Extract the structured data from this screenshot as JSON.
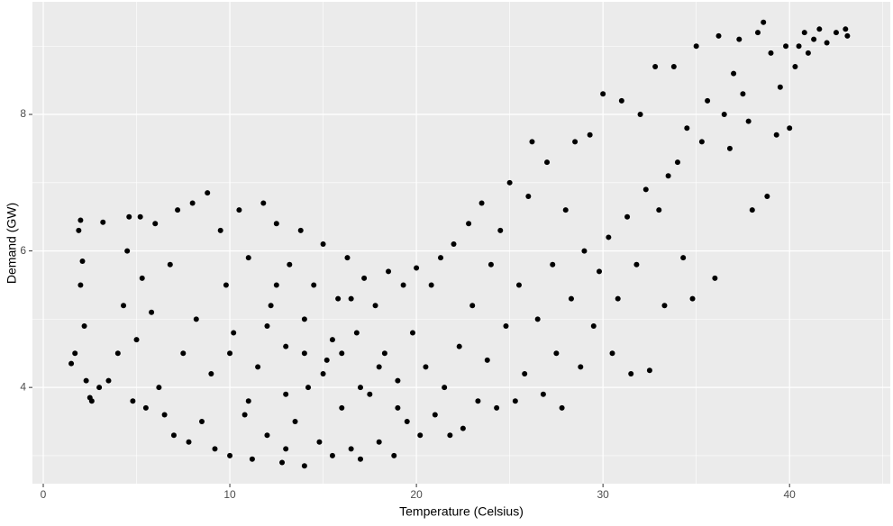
{
  "chart_data": {
    "type": "scatter",
    "x_label": "Temperature (Celsius)",
    "y_label": "Demand (GW)",
    "xlim": [
      -0.58,
      45.4
    ],
    "ylim": [
      2.59,
      9.65
    ],
    "xticks": [
      0,
      10,
      20,
      30,
      40
    ],
    "yticks": [
      4,
      6,
      8
    ],
    "grid": true,
    "color": "#000000",
    "series": [
      {
        "name": "Demand",
        "x": [
          1.5,
          1.7,
          1.9,
          2.0,
          2.1,
          2.0,
          2.2,
          2.3,
          2.5,
          2.6,
          3.0,
          3.2,
          3.5,
          4.0,
          4.3,
          4.5,
          4.6,
          4.8,
          5.0,
          5.2,
          5.3,
          5.5,
          5.8,
          6.0,
          6.2,
          6.5,
          6.8,
          7.0,
          7.2,
          7.5,
          7.8,
          8.0,
          8.2,
          8.5,
          8.8,
          9.0,
          9.2,
          9.5,
          9.8,
          10,
          10.2,
          10.5,
          10.8,
          11,
          11.2,
          11.5,
          11.8,
          12,
          12.2,
          12.5,
          12.8,
          13,
          13.2,
          13.5,
          13.8,
          14,
          14.2,
          14.5,
          14.8,
          15,
          15.2,
          15.5,
          15.8,
          16,
          16.3,
          16.5,
          16.8,
          17,
          17.2,
          17.5,
          17.8,
          18,
          18.3,
          18.5,
          18.8,
          19,
          19.3,
          19.5,
          19.8,
          20,
          20.2,
          20.5,
          20.8,
          21,
          21.3,
          21.5,
          21.8,
          22,
          22.3,
          22.5,
          22.8,
          23,
          23.3,
          23.5,
          23.8,
          24,
          24.3,
          24.5,
          24.8,
          25,
          25.3,
          25.5,
          25.8,
          26,
          26.2,
          26.5,
          26.8,
          27,
          27.3,
          27.5,
          27.8,
          28,
          28.3,
          28.5,
          28.8,
          29,
          29.3,
          29.5,
          29.8,
          30,
          30.3,
          30.5,
          30.8,
          31,
          31.3,
          31.5,
          31.8,
          32,
          32.3,
          32.5,
          32.8,
          33,
          33.3,
          33.5,
          33.8,
          34,
          34.3,
          34.5,
          34.8,
          35,
          35.3,
          35.6,
          36,
          36.2,
          36.5,
          36.8,
          37,
          37.3,
          37.5,
          37.8,
          38,
          38.3,
          38.6,
          38.8,
          39,
          39.3,
          39.5,
          39.8,
          40,
          40.3,
          40.5,
          40.8,
          41,
          41.3,
          41.6,
          42,
          42.5,
          43,
          43.1,
          10,
          11,
          12,
          13,
          14,
          15,
          16,
          17,
          18,
          12.5,
          14,
          15.5,
          16.5,
          13,
          19
        ],
        "y": [
          4.35,
          4.5,
          6.3,
          6.45,
          5.85,
          5.5,
          4.9,
          4.1,
          3.85,
          3.8,
          4.0,
          6.42,
          4.1,
          4.5,
          5.2,
          6.0,
          6.5,
          3.8,
          4.7,
          6.5,
          5.6,
          3.7,
          5.1,
          6.4,
          4.0,
          3.6,
          5.8,
          3.3,
          6.6,
          4.5,
          3.2,
          6.7,
          5.0,
          3.5,
          6.85,
          4.2,
          3.1,
          6.3,
          5.5,
          3.0,
          4.8,
          6.6,
          3.6,
          5.9,
          2.95,
          4.3,
          6.7,
          3.3,
          5.2,
          6.4,
          2.9,
          4.6,
          5.8,
          3.5,
          6.3,
          2.85,
          4.0,
          5.5,
          3.2,
          6.1,
          4.4,
          3.0,
          5.3,
          3.7,
          5.9,
          3.1,
          4.8,
          2.95,
          5.6,
          3.9,
          5.2,
          3.2,
          4.5,
          5.7,
          3.0,
          4.1,
          5.5,
          3.5,
          4.8,
          5.75,
          3.3,
          4.3,
          5.5,
          3.6,
          5.9,
          4.0,
          3.3,
          6.1,
          4.6,
          3.4,
          6.4,
          5.2,
          3.8,
          6.7,
          4.4,
          5.8,
          3.7,
          6.3,
          4.9,
          7.0,
          3.8,
          5.5,
          4.2,
          6.8,
          7.6,
          5.0,
          3.9,
          7.3,
          5.8,
          4.5,
          3.7,
          6.6,
          5.3,
          7.6,
          4.3,
          6.0,
          7.7,
          4.9,
          5.7,
          8.3,
          6.2,
          4.5,
          5.3,
          8.2,
          6.5,
          4.2,
          5.8,
          8.0,
          6.9,
          4.25,
          8.7,
          6.6,
          5.2,
          7.1,
          8.7,
          7.3,
          5.9,
          7.8,
          5.3,
          9.0,
          7.6,
          8.2,
          5.6,
          9.15,
          8.0,
          7.5,
          8.6,
          9.1,
          8.3,
          7.9,
          6.6,
          9.2,
          9.35,
          6.8,
          8.9,
          7.7,
          8.4,
          9.0,
          7.8,
          8.7,
          9.0,
          9.2,
          8.9,
          9.1,
          9.25,
          9.05,
          9.2,
          9.25,
          9.15,
          4.5,
          3.8,
          4.9,
          3.9,
          5.0,
          4.2,
          4.5,
          4.0,
          4.3,
          5.5,
          4.5,
          4.7,
          5.3,
          3.1,
          3.7
        ]
      }
    ]
  }
}
